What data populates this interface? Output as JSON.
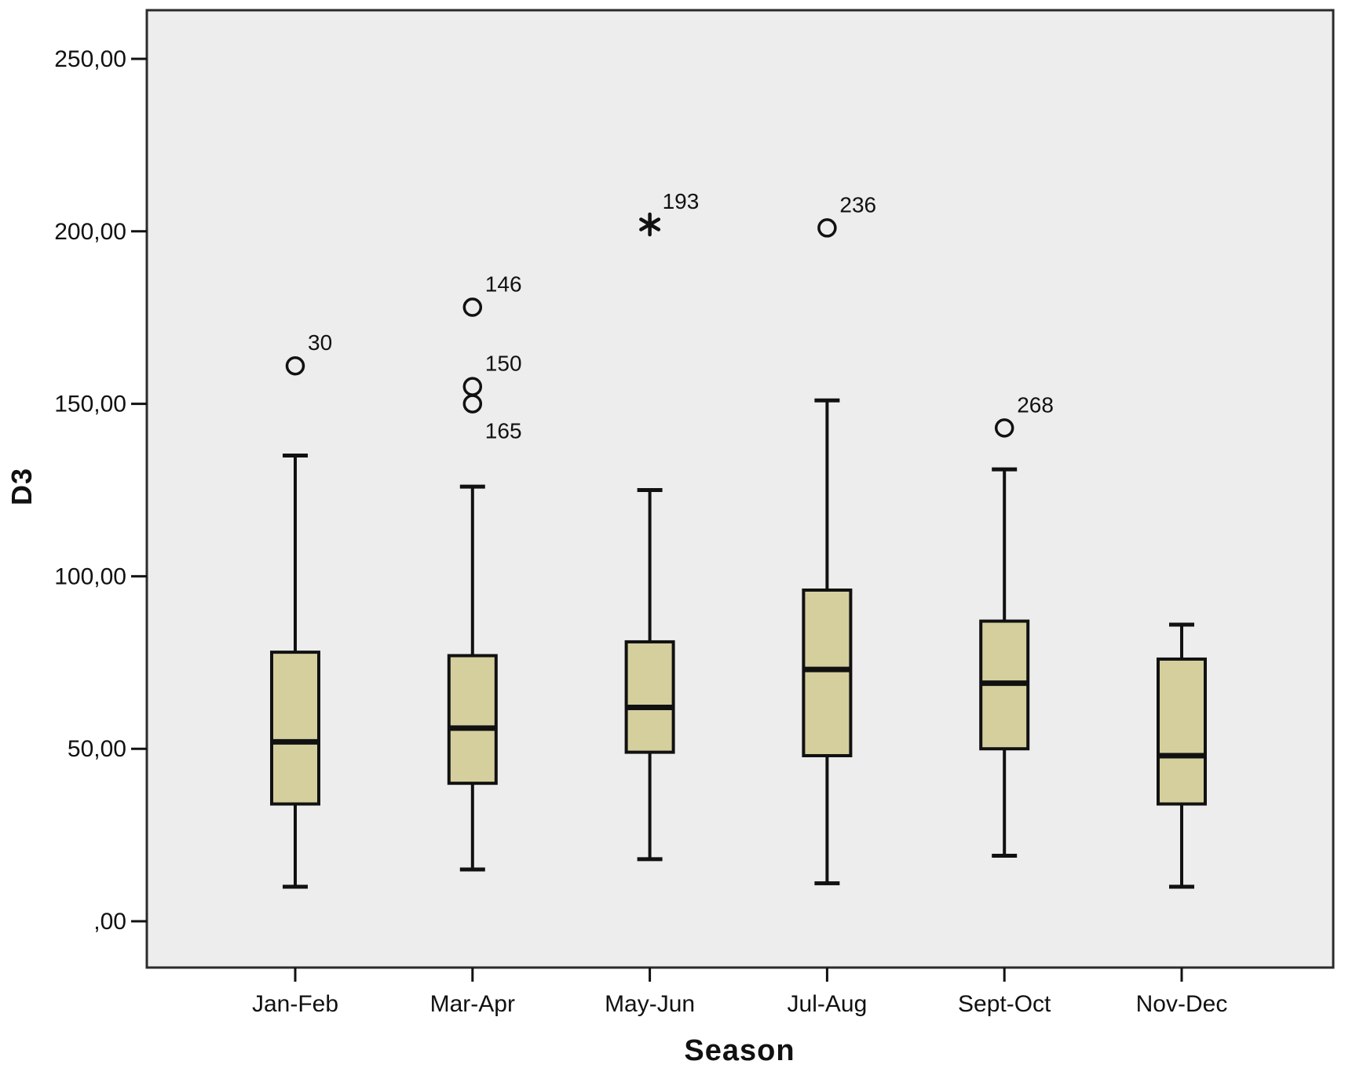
{
  "chart_data": {
    "type": "boxplot",
    "title": "",
    "xlabel": "Season",
    "ylabel": "D3",
    "ylim": [
      0,
      250
    ],
    "grid": false,
    "legend": "none",
    "decimal_style": "comma",
    "plot_bg_color": "#ededed",
    "box_fill_color": "#d5cf9e",
    "line_color": "#111111",
    "ytick_values": [
      0,
      50,
      100,
      150,
      200,
      250
    ],
    "ytick_labels": [
      ",00",
      "50,00",
      "100,00",
      "150,00",
      "200,00",
      "250,00"
    ],
    "categories": [
      "Jan-Feb",
      "Mar-Apr",
      "May-Jun",
      "Jul-Aug",
      "Sept-Oct",
      "Nov-Dec"
    ],
    "boxes": [
      {
        "category": "Jan-Feb",
        "whisker_low": 10,
        "q1": 34,
        "median": 52,
        "q3": 78,
        "whisker_high": 135,
        "outliers": [
          {
            "value": 161,
            "case_label": "30",
            "marker": "circle",
            "label_side": "above"
          }
        ]
      },
      {
        "category": "Mar-Apr",
        "whisker_low": 15,
        "q1": 40,
        "median": 56,
        "q3": 77,
        "whisker_high": 126,
        "outliers": [
          {
            "value": 178,
            "case_label": "146",
            "marker": "circle",
            "label_side": "above"
          },
          {
            "value": 155,
            "case_label": "150",
            "marker": "circle",
            "label_side": "above"
          },
          {
            "value": 150,
            "case_label": "165",
            "marker": "circle",
            "label_side": "below"
          }
        ]
      },
      {
        "category": "May-Jun",
        "whisker_low": 18,
        "q1": 49,
        "median": 62,
        "q3": 81,
        "whisker_high": 125,
        "outliers": [
          {
            "value": 202,
            "case_label": "193",
            "marker": "star",
            "label_side": "above"
          }
        ]
      },
      {
        "category": "Jul-Aug",
        "whisker_low": 11,
        "q1": 48,
        "median": 73,
        "q3": 96,
        "whisker_high": 151,
        "outliers": [
          {
            "value": 201,
            "case_label": "236",
            "marker": "circle",
            "label_side": "above"
          }
        ]
      },
      {
        "category": "Sept-Oct",
        "whisker_low": 19,
        "q1": 50,
        "median": 69,
        "q3": 87,
        "whisker_high": 131,
        "outliers": [
          {
            "value": 143,
            "case_label": "268",
            "marker": "circle",
            "label_side": "above"
          }
        ]
      },
      {
        "category": "Nov-Dec",
        "whisker_low": 10,
        "q1": 34,
        "median": 48,
        "q3": 76,
        "whisker_high": 86,
        "outliers": []
      }
    ]
  }
}
